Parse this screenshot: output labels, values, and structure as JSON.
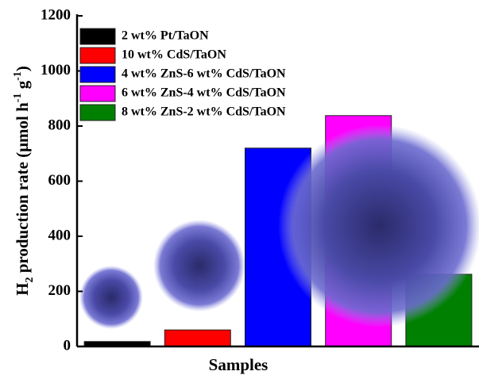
{
  "chart_data": {
    "type": "bar",
    "ylabel": [
      "H",
      "2",
      " production rate (μmol h",
      "-1",
      " g",
      "-1",
      ")"
    ],
    "xlabel": "Samples",
    "series": [
      {
        "name": "2 wt% Pt/TaON",
        "color": "#000000",
        "values": [
          18
        ]
      },
      {
        "name": "10 wt% CdS/TaON",
        "color": "#ff0000",
        "values": [
          60
        ]
      },
      {
        "name": "4 wt% ZnS-6 wt% CdS/TaON",
        "color": "#0000ff",
        "values": [
          720
        ]
      },
      {
        "name": "6 wt% ZnS-4 wt% CdS/TaON",
        "color": "#ff00ff",
        "values": [
          838
        ]
      },
      {
        "name": "8 wt% ZnS-2 wt% CdS/TaON",
        "color": "#008000",
        "values": [
          262
        ]
      }
    ],
    "ylim": [
      0,
      1200
    ],
    "yticks": [
      0,
      200,
      400,
      600,
      800,
      1000,
      1200
    ],
    "legend": "upper-left"
  }
}
